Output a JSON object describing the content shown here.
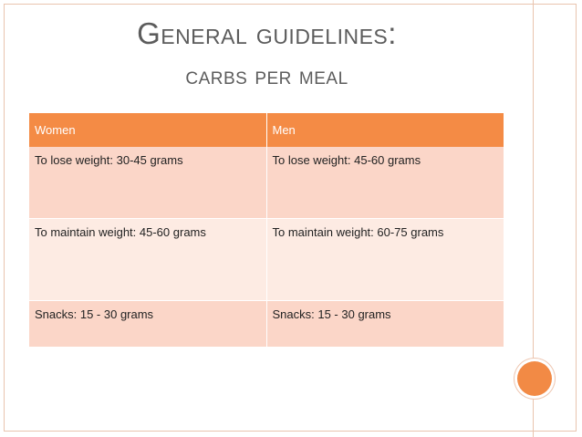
{
  "title": {
    "line1": "General guidelines:",
    "line2": "carbs per meal"
  },
  "table": {
    "headers": [
      "Women",
      "Men"
    ],
    "rows": [
      [
        "To lose weight: 30-45 grams",
        "To lose weight: 45-60 grams"
      ],
      [
        "To maintain weight: 45-60 grams",
        "To maintain weight: 60-75 grams"
      ],
      [
        "Snacks: 15 - 30 grams",
        "Snacks: 15 - 30 grams"
      ]
    ]
  },
  "colors": {
    "header_bg": "#f48b45",
    "row_dark": "#fbd6c8",
    "row_light": "#fdebe3",
    "title_text": "#5c5c5c",
    "accent_circle": "#f28a45"
  }
}
